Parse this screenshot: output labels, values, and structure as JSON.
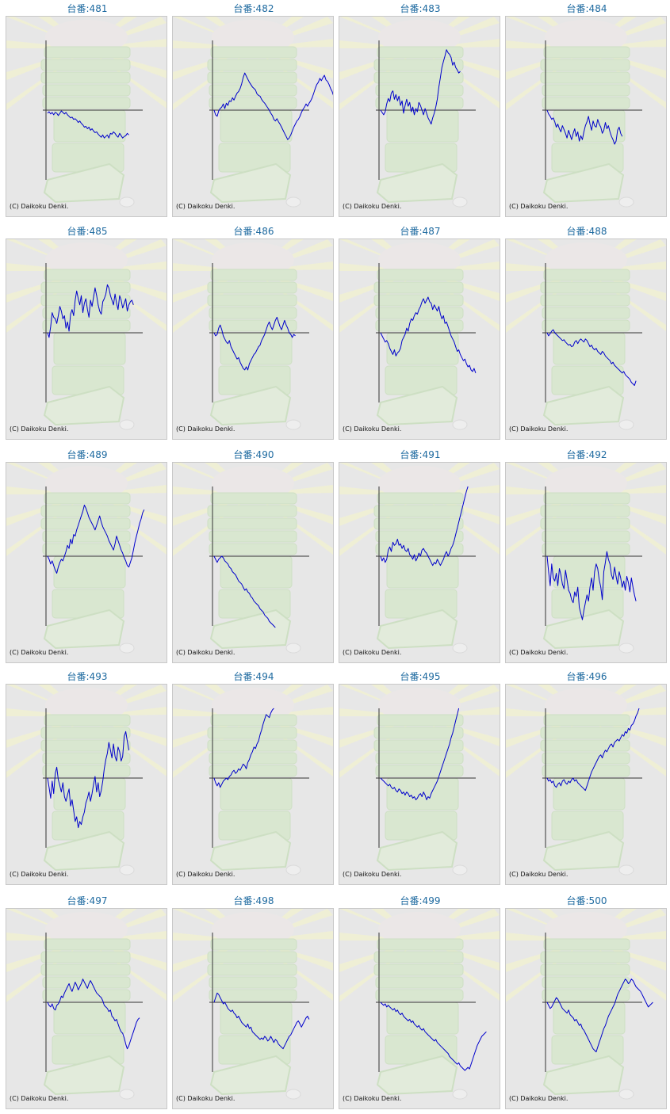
{
  "copyright": "(C) Daikoku Denki.",
  "colors": {
    "title": "#1e6aa0",
    "line": "#0000cc",
    "axis": "#333333",
    "panel_bg": "#e7e7e7"
  },
  "chart_data": [
    {
      "type": "line",
      "title": "台番:481",
      "values": [
        -4,
        -2,
        -5,
        -3,
        -6,
        -3,
        -4,
        -7,
        -4,
        -1,
        -3,
        -5,
        -3,
        -6,
        -8,
        -10,
        -9,
        -12,
        -11,
        -13,
        -16,
        -14,
        -17,
        -19,
        -22,
        -21,
        -24,
        -22,
        -26,
        -24,
        -27,
        -29,
        -28,
        -31,
        -33,
        -35,
        -32,
        -36,
        -34,
        -32,
        -36,
        -30,
        -31,
        -28,
        -30,
        -33,
        -35,
        -30,
        -33,
        -36,
        -34,
        -33,
        -30,
        -32
      ]
    },
    {
      "type": "line",
      "title": "台番:482",
      "values": [
        0,
        -6,
        -8,
        -1,
        2,
        4,
        8,
        2,
        9,
        6,
        12,
        11,
        16,
        13,
        18,
        22,
        24,
        28,
        34,
        42,
        48,
        44,
        40,
        36,
        33,
        30,
        28,
        26,
        21,
        19,
        18,
        14,
        11,
        9,
        6,
        3,
        0,
        -4,
        -7,
        -12,
        -14,
        -11,
        -15,
        -18,
        -22,
        -26,
        -30,
        -34,
        -38,
        -36,
        -32,
        -27,
        -22,
        -18,
        -14,
        -12,
        -8,
        -3,
        1,
        4,
        8,
        5,
        9,
        12,
        16,
        22,
        28,
        33,
        36,
        41,
        38,
        42,
        45,
        39,
        37,
        33,
        28,
        24,
        18,
        14,
        10,
        8
      ]
    },
    {
      "type": "line",
      "title": "台番:483",
      "values": [
        0,
        -3,
        -6,
        -2,
        8,
        15,
        11,
        22,
        25,
        14,
        20,
        12,
        18,
        6,
        12,
        -4,
        6,
        14,
        5,
        10,
        -2,
        4,
        -6,
        2,
        -2,
        10,
        6,
        0,
        -6,
        2,
        -4,
        -10,
        -14,
        -18,
        -10,
        -4,
        4,
        14,
        30,
        42,
        55,
        63,
        70,
        78,
        74,
        72,
        68,
        58,
        62,
        55,
        52,
        48,
        50
      ]
    },
    {
      "type": "line",
      "title": "台番:484",
      "values": [
        0,
        -5,
        -8,
        -12,
        -10,
        -15,
        -22,
        -18,
        -24,
        -28,
        -20,
        -25,
        -30,
        -36,
        -26,
        -32,
        -38,
        -30,
        -24,
        -34,
        -28,
        -40,
        -33,
        -38,
        -28,
        -20,
        -15,
        -8,
        -18,
        -26,
        -14,
        -20,
        -22,
        -12,
        -18,
        -22,
        -30,
        -26,
        -16,
        -24,
        -20,
        -28,
        -34,
        -38,
        -44,
        -40,
        -26,
        -22,
        -30,
        -34
      ]
    },
    {
      "type": "line",
      "title": "台番:485",
      "values": [
        0,
        -6,
        8,
        26,
        20,
        18,
        12,
        22,
        34,
        28,
        18,
        22,
        6,
        14,
        2,
        24,
        30,
        22,
        42,
        54,
        44,
        36,
        48,
        26,
        38,
        44,
        30,
        20,
        42,
        34,
        46,
        58,
        48,
        36,
        28,
        24,
        40,
        44,
        50,
        62,
        58,
        48,
        42,
        36,
        50,
        38,
        30,
        48,
        42,
        32,
        38,
        44,
        28,
        36,
        40,
        42,
        36
      ]
    },
    {
      "type": "line",
      "title": "台番:486",
      "values": [
        0,
        -4,
        -2,
        6,
        10,
        4,
        -4,
        -8,
        -12,
        -14,
        -10,
        -18,
        -22,
        -26,
        -30,
        -34,
        -32,
        -38,
        -42,
        -46,
        -48,
        -44,
        -48,
        -40,
        -36,
        -32,
        -28,
        -26,
        -22,
        -18,
        -16,
        -10,
        -6,
        -2,
        4,
        10,
        14,
        8,
        4,
        10,
        16,
        20,
        14,
        8,
        4,
        10,
        16,
        10,
        6,
        0,
        -2,
        -6,
        -2,
        -4
      ]
    },
    {
      "type": "line",
      "title": "台番:487",
      "values": [
        0,
        -4,
        -8,
        -12,
        -10,
        -14,
        -20,
        -24,
        -28,
        -22,
        -30,
        -26,
        -24,
        -20,
        -10,
        -6,
        -2,
        6,
        2,
        12,
        18,
        16,
        22,
        26,
        24,
        30,
        34,
        40,
        44,
        38,
        42,
        46,
        40,
        38,
        30,
        36,
        32,
        28,
        34,
        24,
        18,
        22,
        12,
        14,
        8,
        2,
        -4,
        -8,
        -12,
        -18,
        -24,
        -22,
        -28,
        -32,
        -36,
        -34,
        -40,
        -44,
        -42,
        -48,
        -50,
        -46,
        -52
      ]
    },
    {
      "type": "line",
      "title": "台番:488",
      "values": [
        0,
        -4,
        -1,
        2,
        4,
        0,
        -2,
        -4,
        -6,
        -8,
        -10,
        -9,
        -12,
        -14,
        -16,
        -15,
        -18,
        -17,
        -12,
        -10,
        -14,
        -10,
        -8,
        -10,
        -12,
        -8,
        -10,
        -14,
        -18,
        -16,
        -20,
        -22,
        -20,
        -24,
        -26,
        -28,
        -24,
        -26,
        -30,
        -32,
        -34,
        -36,
        -40,
        -38,
        -42,
        -44,
        -46,
        -48,
        -50,
        -52,
        -50,
        -54,
        -56,
        -58,
        -60,
        -64,
        -66,
        -68,
        -62
      ]
    },
    {
      "type": "line",
      "title": "台番:489",
      "values": [
        0,
        -4,
        -10,
        -6,
        -12,
        -18,
        -22,
        -14,
        -8,
        -4,
        -6,
        0,
        6,
        14,
        10,
        22,
        16,
        28,
        26,
        34,
        40,
        46,
        52,
        58,
        66,
        62,
        56,
        50,
        46,
        42,
        38,
        34,
        40,
        46,
        52,
        44,
        38,
        34,
        30,
        26,
        20,
        16,
        12,
        8,
        16,
        26,
        20,
        14,
        8,
        4,
        -2,
        -6,
        -12,
        -14,
        -8,
        -2,
        8,
        18,
        26,
        34,
        42,
        48,
        56,
        60
      ]
    },
    {
      "type": "line",
      "title": "台番:490",
      "values": [
        0,
        -4,
        -8,
        -4,
        -2,
        0,
        -2,
        -6,
        -8,
        -10,
        -14,
        -16,
        -20,
        -22,
        -24,
        -28,
        -32,
        -34,
        -36,
        -40,
        -44,
        -42,
        -46,
        -48,
        -52,
        -54,
        -58,
        -60,
        -62,
        -64,
        -68,
        -70,
        -72,
        -76,
        -78,
        -80,
        -84,
        -86,
        -88,
        -90,
        -92
      ]
    },
    {
      "type": "line",
      "title": "台番:491",
      "values": [
        0,
        -6,
        -2,
        -8,
        -4,
        8,
        12,
        6,
        18,
        14,
        16,
        22,
        14,
        16,
        10,
        14,
        8,
        6,
        10,
        2,
        0,
        -4,
        2,
        -6,
        -2,
        4,
        0,
        8,
        10,
        6,
        4,
        0,
        -4,
        -8,
        -12,
        -8,
        -10,
        -4,
        -8,
        -12,
        -8,
        -4,
        2,
        6,
        0,
        4,
        10,
        14,
        20,
        28,
        36,
        44,
        52,
        60,
        68,
        76,
        84,
        90
      ]
    },
    {
      "type": "line",
      "title": "台番:492",
      "values": [
        0,
        -20,
        -38,
        -10,
        -28,
        -32,
        -22,
        -38,
        -16,
        -24,
        -36,
        -42,
        -18,
        -30,
        -44,
        -48,
        -56,
        -60,
        -46,
        -52,
        -40,
        -66,
        -74,
        -82,
        -70,
        -60,
        -50,
        -58,
        -40,
        -28,
        -44,
        -20,
        -10,
        -16,
        -30,
        -40,
        -56,
        -20,
        -8,
        6,
        -4,
        -10,
        -24,
        -30,
        -14,
        -26,
        -36,
        -20,
        -28,
        -40,
        -32,
        -44,
        -26,
        -34,
        -46,
        -28,
        -40,
        -50,
        -58
      ]
    },
    {
      "type": "line",
      "title": "台番:493",
      "values": [
        0,
        -12,
        -26,
        -4,
        -20,
        6,
        14,
        -2,
        -10,
        -18,
        -6,
        -24,
        -30,
        -22,
        -14,
        -36,
        -28,
        -42,
        -56,
        -50,
        -64,
        -56,
        -60,
        -50,
        -44,
        -32,
        -26,
        -18,
        -30,
        -20,
        -8,
        2,
        -18,
        -6,
        -24,
        -16,
        -4,
        12,
        24,
        32,
        46,
        36,
        26,
        44,
        28,
        22,
        40,
        34,
        22,
        28,
        54,
        60,
        48,
        36
      ]
    },
    {
      "type": "line",
      "title": "台番:494",
      "values": [
        0,
        -6,
        -10,
        -6,
        -12,
        -8,
        -4,
        -2,
        0,
        -2,
        2,
        4,
        8,
        10,
        6,
        8,
        12,
        10,
        14,
        18,
        16,
        12,
        20,
        24,
        30,
        34,
        40,
        38,
        44,
        48,
        56,
        62,
        70,
        76,
        82,
        80,
        78,
        84,
        88,
        90
      ]
    },
    {
      "type": "line",
      "title": "台番:495",
      "values": [
        0,
        -2,
        -4,
        -6,
        -8,
        -10,
        -8,
        -12,
        -14,
        -12,
        -16,
        -18,
        -14,
        -16,
        -20,
        -18,
        -22,
        -18,
        -20,
        -24,
        -22,
        -26,
        -24,
        -28,
        -26,
        -22,
        -20,
        -24,
        -18,
        -22,
        -28,
        -24,
        -26,
        -20,
        -16,
        -12,
        -8,
        -4,
        2,
        8,
        14,
        20,
        26,
        32,
        38,
        44,
        52,
        58,
        66,
        74,
        82,
        90
      ]
    },
    {
      "type": "line",
      "title": "台番:496",
      "values": [
        0,
        -4,
        -2,
        -6,
        -4,
        -10,
        -12,
        -8,
        -6,
        -10,
        -4,
        -2,
        -6,
        -8,
        -4,
        -6,
        -2,
        0,
        -4,
        -2,
        -6,
        -8,
        -10,
        -12,
        -14,
        -16,
        -10,
        -4,
        2,
        8,
        12,
        16,
        20,
        24,
        28,
        30,
        26,
        32,
        36,
        34,
        38,
        42,
        44,
        40,
        46,
        48,
        50,
        48,
        52,
        56,
        54,
        60,
        58,
        64,
        62,
        68,
        70,
        74,
        80,
        84,
        90
      ]
    },
    {
      "type": "line",
      "title": "台番:497",
      "values": [
        0,
        -4,
        -6,
        -2,
        -8,
        -10,
        -4,
        -2,
        2,
        8,
        6,
        12,
        16,
        20,
        24,
        18,
        14,
        20,
        26,
        22,
        16,
        20,
        24,
        30,
        26,
        22,
        18,
        24,
        28,
        24,
        20,
        16,
        12,
        10,
        8,
        6,
        2,
        -4,
        -6,
        -8,
        -12,
        -10,
        -18,
        -20,
        -24,
        -22,
        -28,
        -34,
        -38,
        -40,
        -46,
        -54,
        -60,
        -56,
        -50,
        -44,
        -38,
        -32,
        -26,
        -22,
        -20
      ]
    },
    {
      "type": "line",
      "title": "台番:498",
      "values": [
        0,
        6,
        12,
        10,
        6,
        2,
        -2,
        0,
        -4,
        -8,
        -10,
        -12,
        -10,
        -14,
        -16,
        -20,
        -18,
        -22,
        -26,
        -28,
        -30,
        -32,
        -28,
        -34,
        -32,
        -38,
        -40,
        -42,
        -44,
        -46,
        -48,
        -46,
        -48,
        -44,
        -46,
        -50,
        -48,
        -44,
        -48,
        -52,
        -48,
        -50,
        -54,
        -56,
        -58,
        -60,
        -56,
        -52,
        -48,
        -44,
        -42,
        -38,
        -34,
        -30,
        -26,
        -24,
        -28,
        -32,
        -28,
        -24,
        -20,
        -18,
        -22
      ]
    },
    {
      "type": "line",
      "title": "台番:499",
      "values": [
        0,
        -2,
        -4,
        -2,
        -6,
        -4,
        -6,
        -8,
        -10,
        -8,
        -12,
        -10,
        -14,
        -16,
        -14,
        -18,
        -20,
        -22,
        -24,
        -22,
        -26,
        -24,
        -28,
        -30,
        -32,
        -30,
        -34,
        -36,
        -34,
        -38,
        -40,
        -42,
        -44,
        -46,
        -48,
        -50,
        -48,
        -52,
        -54,
        -56,
        -58,
        -60,
        -62,
        -64,
        -66,
        -70,
        -72,
        -74,
        -76,
        -78,
        -80,
        -78,
        -82,
        -84,
        -86,
        -88,
        -86,
        -84,
        -86,
        -80,
        -74,
        -68,
        -62,
        -56,
        -52,
        -48,
        -44,
        -42,
        -40,
        -38
      ]
    },
    {
      "type": "line",
      "title": "台番:500",
      "values": [
        0,
        -4,
        -8,
        -6,
        -2,
        2,
        6,
        4,
        0,
        -4,
        -8,
        -10,
        -12,
        -14,
        -10,
        -16,
        -18,
        -20,
        -24,
        -22,
        -26,
        -30,
        -28,
        -34,
        -36,
        -40,
        -44,
        -48,
        -52,
        -56,
        -60,
        -62,
        -64,
        -58,
        -52,
        -46,
        -40,
        -34,
        -30,
        -24,
        -18,
        -14,
        -10,
        -6,
        -2,
        4,
        10,
        14,
        18,
        22,
        26,
        30,
        28,
        24,
        26,
        30,
        28,
        24,
        20,
        18,
        16,
        14,
        10,
        6,
        2,
        -2,
        -6,
        -4,
        -2,
        0
      ]
    }
  ]
}
